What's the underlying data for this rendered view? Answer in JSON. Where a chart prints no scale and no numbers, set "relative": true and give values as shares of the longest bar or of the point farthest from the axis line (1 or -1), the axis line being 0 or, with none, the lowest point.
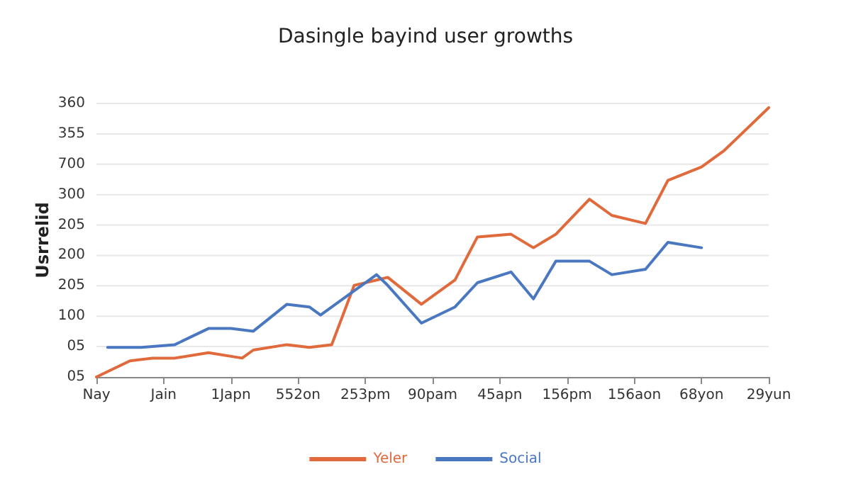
{
  "chart_data": {
    "type": "line",
    "title": "Dasingle bayind user growths",
    "ylabel": "Usrrelid",
    "relative": true,
    "categories": [
      "Nay",
      null,
      null,
      null,
      null,
      null,
      "Jain",
      null,
      null,
      null,
      null,
      null,
      "1Japn",
      null,
      null,
      null,
      null,
      null,
      "552on",
      null,
      null,
      null,
      null,
      null,
      "253pm",
      null,
      null,
      null,
      null,
      null,
      "90pam",
      null,
      null,
      null,
      null,
      null,
      "45apn",
      null,
      null,
      null,
      null,
      null,
      "156pm",
      null,
      null,
      null,
      null,
      null,
      "156aon",
      null,
      null,
      null,
      null,
      null,
      "68yon",
      null,
      null,
      null,
      null,
      null,
      "29yun"
    ],
    "annotations": [
      "05",
      "05",
      "100",
      "205",
      "200",
      "205",
      "300",
      "700",
      "355",
      "360"
    ],
    "grid": "y",
    "legend": "bottom",
    "line_style": "solid",
    "series": [
      {
        "name": "Yeler",
        "color": "#e06a3b",
        "values": [
          0,
          null,
          null,
          0.06,
          null,
          0.07,
          null,
          0.07,
          null,
          null,
          0.09,
          null,
          null,
          0.07,
          0.1,
          null,
          null,
          0.12,
          null,
          0.11,
          null,
          0.12,
          null,
          0.34,
          null,
          0.36,
          0.37,
          null,
          null,
          0.27,
          null,
          null,
          0.36,
          null,
          0.52,
          null,
          null,
          0.53,
          null,
          0.48,
          null,
          0.53,
          null,
          null,
          0.66,
          null,
          0.6,
          null,
          null,
          0.57,
          null,
          0.73,
          null,
          null,
          0.78,
          null,
          0.84,
          0.88,
          null,
          null,
          1
        ]
      },
      {
        "name": "Social",
        "color": "#4a78c0",
        "values": [
          null,
          0.11,
          null,
          null,
          0.11,
          null,
          null,
          0.12,
          null,
          null,
          0.18,
          null,
          0.18,
          null,
          0.17,
          null,
          null,
          0.27,
          null,
          0.26,
          0.23,
          null,
          null,
          0.32,
          null,
          0.38,
          0.34,
          null,
          null,
          0.2,
          null,
          null,
          0.26,
          null,
          0.35,
          null,
          null,
          0.39,
          null,
          0.29,
          null,
          0.43,
          null,
          null,
          0.43,
          null,
          0.38,
          null,
          null,
          0.4,
          null,
          0.5,
          null,
          null,
          0.48,
          null,
          null,
          null,
          null,
          null,
          null
        ]
      }
    ]
  }
}
